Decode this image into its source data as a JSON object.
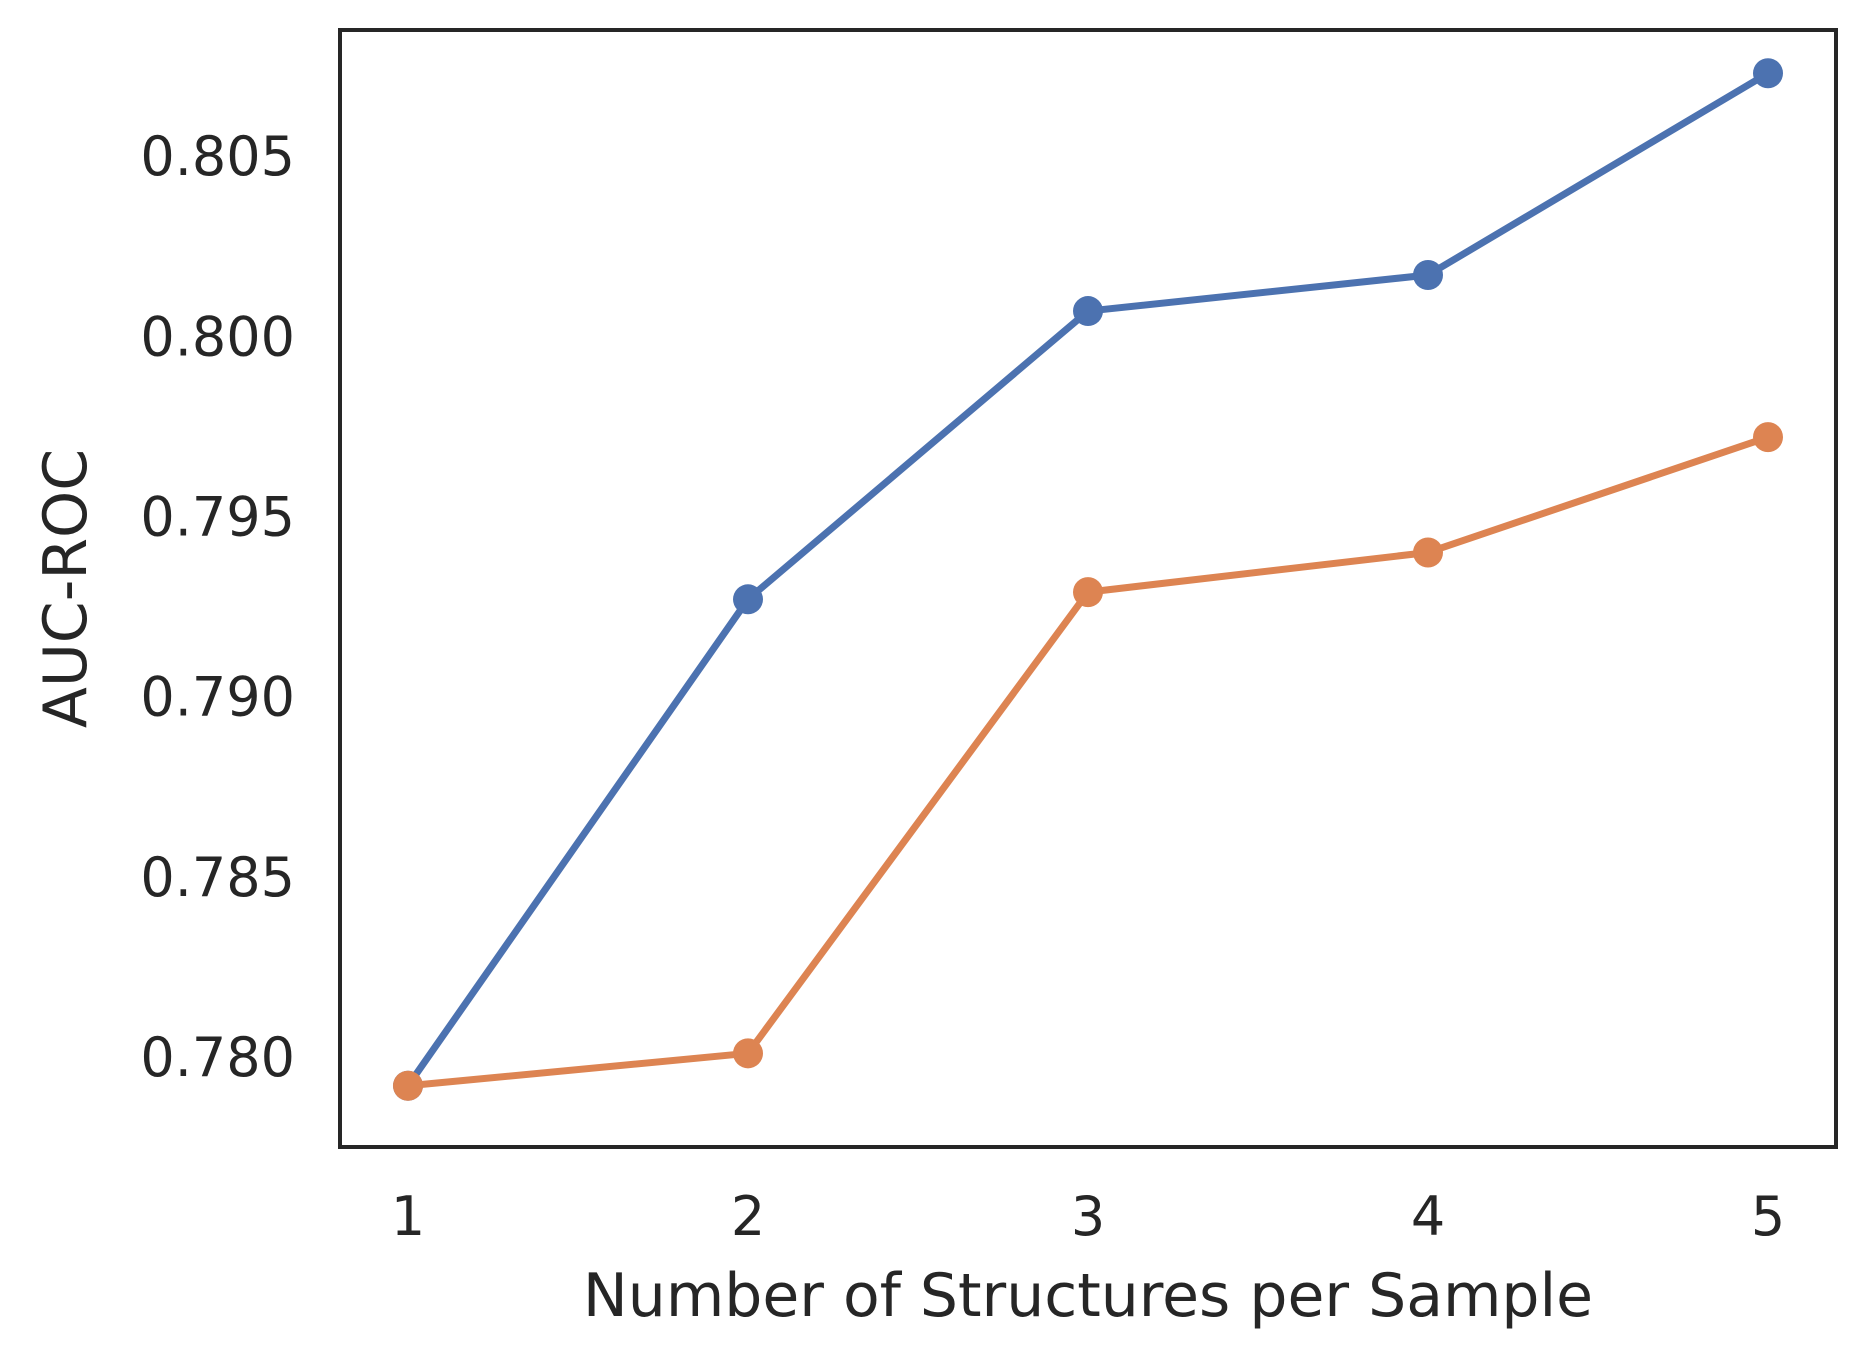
{
  "chart_data": {
    "type": "line",
    "title": "",
    "xlabel": "Number of Structures per Sample",
    "ylabel": "AUC-ROC",
    "x": [
      1,
      2,
      3,
      4,
      5
    ],
    "x_tick_labels": [
      "1",
      "2",
      "3",
      "4",
      "5"
    ],
    "y_ticks": [
      0.78,
      0.785,
      0.79,
      0.795,
      0.8,
      0.805
    ],
    "y_tick_labels": [
      "0.780",
      "0.785",
      "0.790",
      "0.795",
      "0.800",
      "0.805"
    ],
    "xlim": [
      0.8,
      5.2
    ],
    "ylim": [
      0.7775,
      0.8085
    ],
    "grid": false,
    "legend": "none",
    "series": [
      {
        "color": "#4c72b0",
        "values": [
          0.7792,
          0.7927,
          0.8007,
          0.8017,
          0.8073
        ]
      },
      {
        "color": "#dd8452",
        "values": [
          0.7792,
          0.7801,
          0.7929,
          0.794,
          0.7972
        ]
      }
    ]
  }
}
